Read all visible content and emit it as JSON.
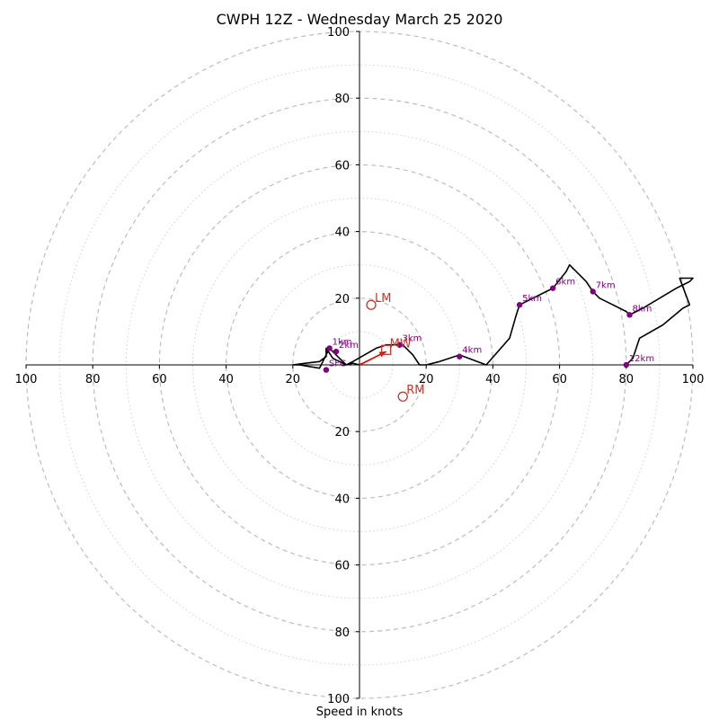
{
  "chart_data": {
    "type": "hodograph",
    "title": "CWPH 12Z - Wednesday March 25 2020",
    "xlabel": "Speed in knots",
    "range": [
      -100,
      100
    ],
    "major_rings": [
      20,
      40,
      60,
      80,
      100
    ],
    "minor_rings": [
      10,
      30,
      50,
      70,
      90
    ],
    "x_tick_labels": [
      "100",
      "80",
      "60",
      "40",
      "20",
      "20",
      "40",
      "60",
      "80",
      "100"
    ],
    "y_tick_labels": [
      "100",
      "80",
      "60",
      "40",
      "20",
      "20",
      "40",
      "60",
      "80",
      "100"
    ],
    "colors": {
      "hodograph": "#000000",
      "height_markers": "#800080",
      "storm_motion": "#c0392b",
      "mean_wind_arrow": "#e00000",
      "rings": "#bdbdbd"
    },
    "hodograph": [
      [
        0,
        0
      ],
      [
        -2,
        0.5
      ],
      [
        -4,
        0
      ],
      [
        -7,
        3
      ],
      [
        -9,
        5
      ],
      [
        -11,
        1
      ],
      [
        -12,
        -1
      ],
      [
        -18,
        0
      ],
      [
        -20,
        0
      ],
      [
        -16,
        0.5
      ],
      [
        -12,
        1
      ],
      [
        -10,
        2.5
      ],
      [
        -10,
        5
      ],
      [
        -8,
        2
      ],
      [
        -6,
        1
      ],
      [
        -4,
        0
      ],
      [
        -2,
        1
      ],
      [
        5,
        5
      ],
      [
        8,
        6
      ],
      [
        13,
        6
      ],
      [
        14,
        5
      ],
      [
        16,
        3
      ],
      [
        18,
        0
      ],
      [
        20,
        0
      ],
      [
        24,
        1
      ],
      [
        30,
        3
      ],
      [
        38,
        0
      ],
      [
        45,
        8
      ],
      [
        47,
        15
      ],
      [
        48,
        18
      ],
      [
        52,
        20
      ],
      [
        56,
        22
      ],
      [
        58,
        23
      ],
      [
        62,
        28
      ],
      [
        63,
        30
      ],
      [
        68,
        25
      ],
      [
        70,
        22
      ],
      [
        72,
        20
      ],
      [
        76,
        18
      ],
      [
        80,
        16
      ],
      [
        81,
        15
      ],
      [
        85,
        17
      ],
      [
        90,
        20
      ],
      [
        95,
        23
      ],
      [
        99,
        25
      ],
      [
        100,
        26
      ],
      [
        96,
        26
      ],
      [
        99,
        18
      ],
      [
        97,
        17
      ],
      [
        91,
        12
      ],
      [
        84,
        8
      ],
      [
        83,
        5
      ],
      [
        82,
        2
      ],
      [
        81,
        1
      ],
      [
        80,
        0
      ]
    ],
    "height_markers": [
      {
        "label": "1km",
        "u": -9,
        "v": 5
      },
      {
        "label": "2km",
        "u": -7,
        "v": 4
      },
      {
        "label": "3km",
        "u": 12,
        "v": 6
      },
      {
        "label": "4km",
        "u": 30,
        "v": 2.5
      },
      {
        "label": "5km",
        "u": 48,
        "v": 18
      },
      {
        "label": "6km",
        "u": 58,
        "v": 23
      },
      {
        "label": "7km",
        "u": 70,
        "v": 22
      },
      {
        "label": "8km",
        "u": 81,
        "v": 15
      },
      {
        "label": "12km",
        "u": 80,
        "v": 0
      },
      {
        "label": "SFC",
        "u": -10,
        "v": -1.5
      }
    ],
    "storm_motion": [
      {
        "label": "LM",
        "u": 3.5,
        "v": 18
      },
      {
        "label": "MW",
        "u": 8,
        "v": 4.5
      },
      {
        "label": "RM",
        "u": 13,
        "v": -9.5
      }
    ],
    "mean_wind_arrow": {
      "u": 8,
      "v": 4
    }
  }
}
